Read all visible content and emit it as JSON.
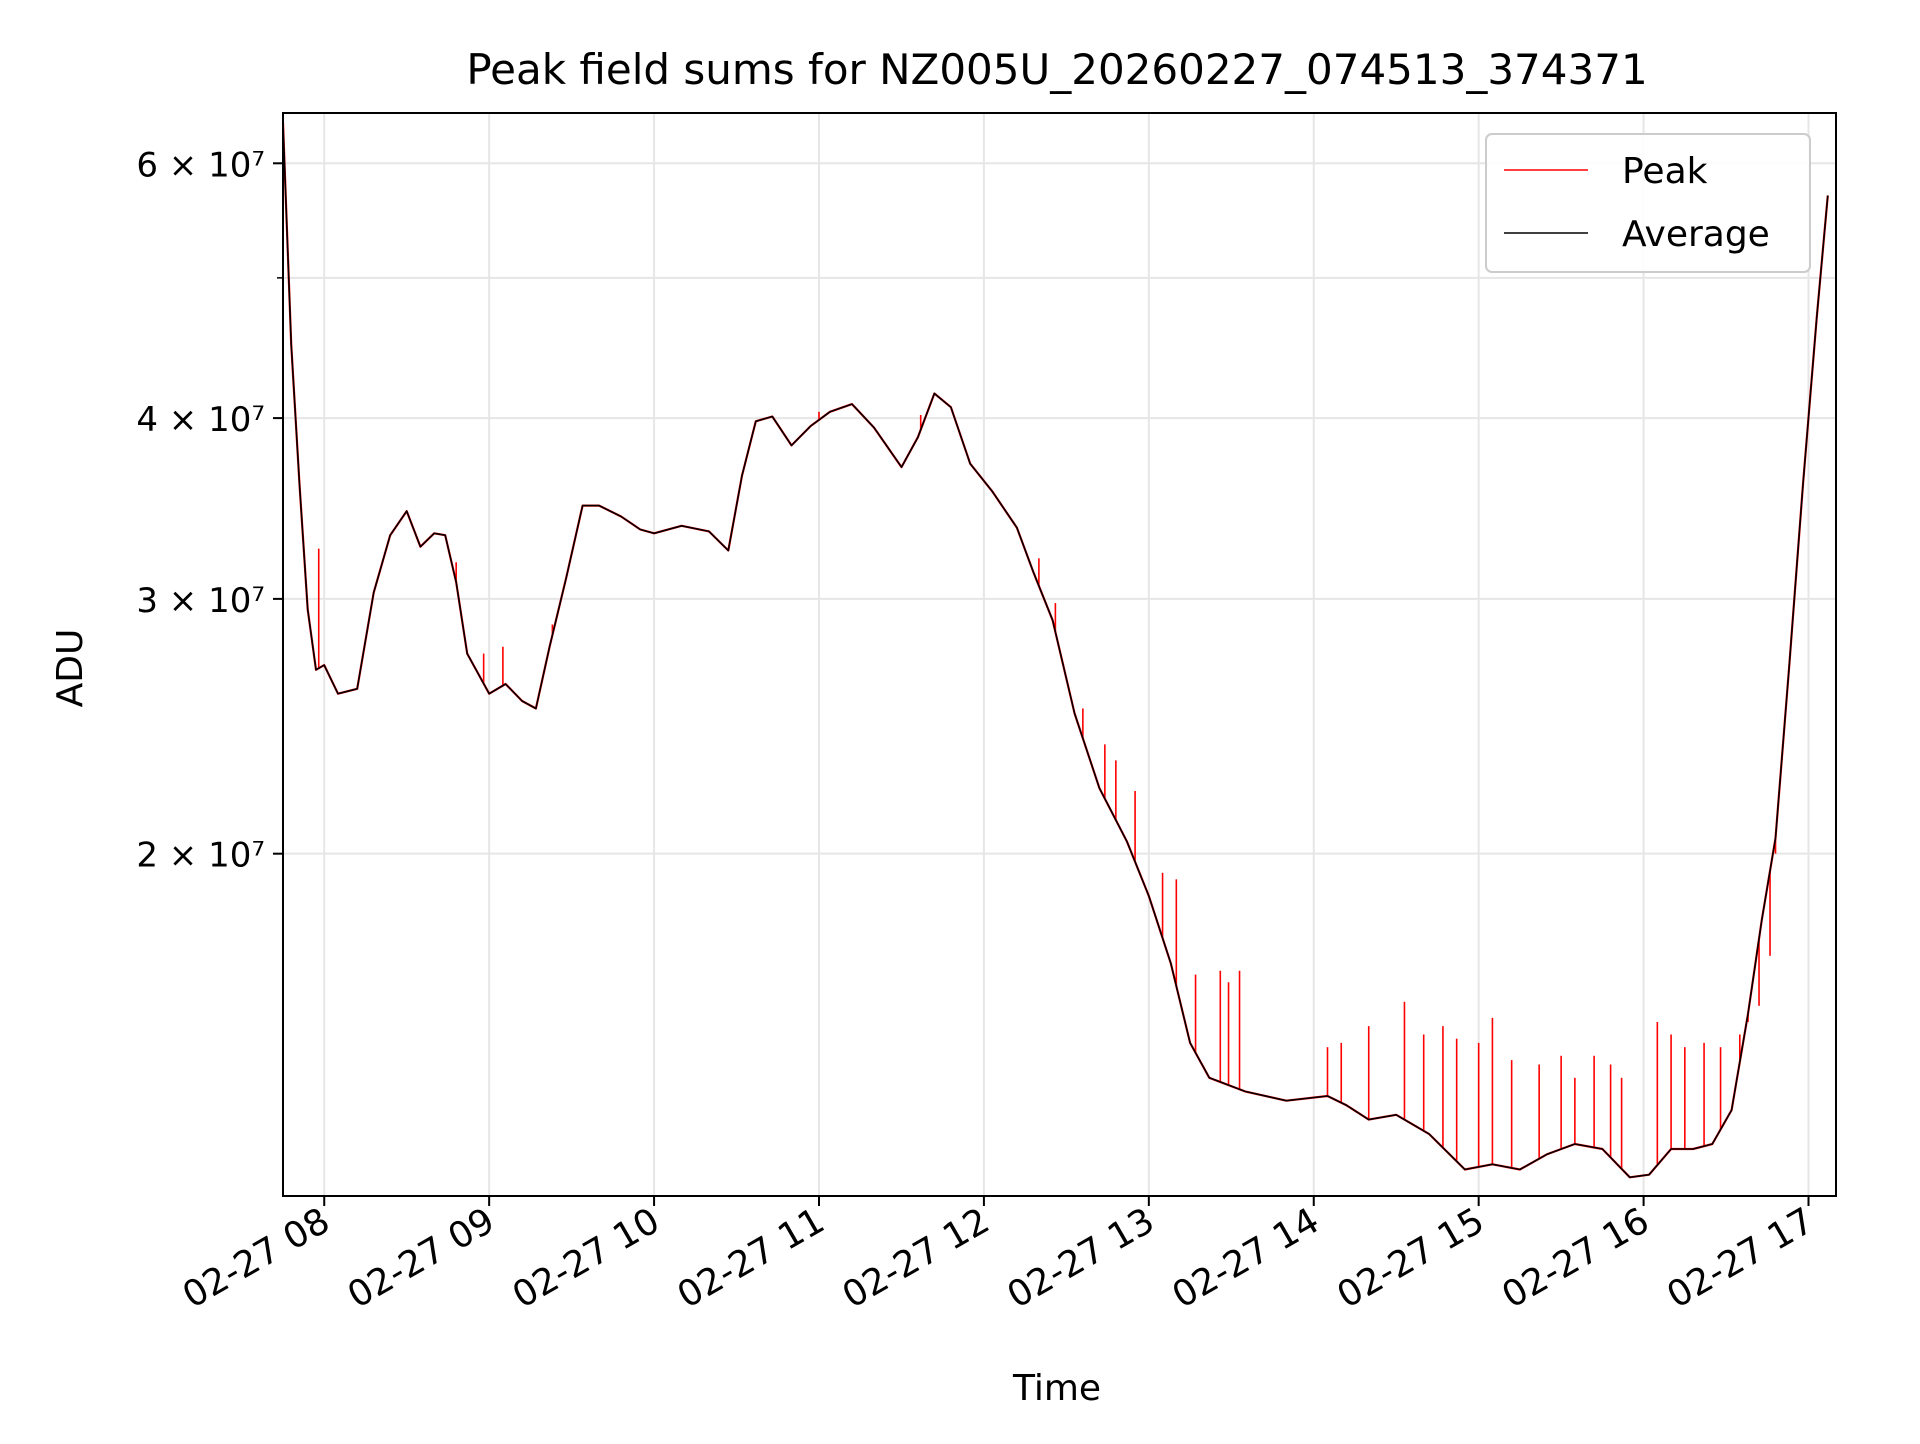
{
  "chart_data": {
    "type": "line",
    "title": "Peak field sums for NZ005U_20260227_074513_374371",
    "xlabel": "Time",
    "ylabel": "ADU",
    "yscale": "log",
    "grid": true,
    "legend_placement": "top-right",
    "x_range": [
      "2026-02-27 07:45",
      "2026-02-27 17:10"
    ],
    "y_range": [
      11600000,
      65000000
    ],
    "x_ticks": [
      {
        "value": "2026-02-27 08:00",
        "label": "02-27 08"
      },
      {
        "value": "2026-02-27 09:00",
        "label": "02-27 09"
      },
      {
        "value": "2026-02-27 10:00",
        "label": "02-27 10"
      },
      {
        "value": "2026-02-27 11:00",
        "label": "02-27 11"
      },
      {
        "value": "2026-02-27 12:00",
        "label": "02-27 12"
      },
      {
        "value": "2026-02-27 13:00",
        "label": "02-27 13"
      },
      {
        "value": "2026-02-27 14:00",
        "label": "02-27 14"
      },
      {
        "value": "2026-02-27 15:00",
        "label": "02-27 15"
      },
      {
        "value": "2026-02-27 16:00",
        "label": "02-27 16"
      },
      {
        "value": "2026-02-27 17:00",
        "label": "02-27 17"
      }
    ],
    "y_ticks": [
      {
        "value": 20000000,
        "label": "2 × 10⁷"
      },
      {
        "value": 30000000,
        "label": "3 × 10⁷"
      },
      {
        "value": 40000000,
        "label": "4 × 10⁷"
      },
      {
        "value": 60000000,
        "label": "6 × 10⁷"
      }
    ],
    "y_minor_ticks": [
      50000000
    ],
    "series": [
      {
        "name": "Average",
        "color": "#000000",
        "points": [
          [
            "2026-02-27 07:45",
            64000000
          ],
          [
            "2026-02-27 07:48",
            45000000
          ],
          [
            "2026-02-27 07:51",
            36000000
          ],
          [
            "2026-02-27 07:54",
            29500000
          ],
          [
            "2026-02-27 07:57",
            26800000
          ],
          [
            "2026-02-27 08:00",
            27000000
          ],
          [
            "2026-02-27 08:05",
            25800000
          ],
          [
            "2026-02-27 08:12",
            26000000
          ],
          [
            "2026-02-27 08:18",
            30300000
          ],
          [
            "2026-02-27 08:24",
            33200000
          ],
          [
            "2026-02-27 08:30",
            34500000
          ],
          [
            "2026-02-27 08:35",
            32600000
          ],
          [
            "2026-02-27 08:40",
            33300000
          ],
          [
            "2026-02-27 08:44",
            33200000
          ],
          [
            "2026-02-27 08:48",
            30800000
          ],
          [
            "2026-02-27 08:52",
            27500000
          ],
          [
            "2026-02-27 09:00",
            25800000
          ],
          [
            "2026-02-27 09:06",
            26200000
          ],
          [
            "2026-02-27 09:12",
            25500000
          ],
          [
            "2026-02-27 09:17",
            25200000
          ],
          [
            "2026-02-27 09:22",
            27800000
          ],
          [
            "2026-02-27 09:28",
            31000000
          ],
          [
            "2026-02-27 09:34",
            34800000
          ],
          [
            "2026-02-27 09:40",
            34800000
          ],
          [
            "2026-02-27 09:48",
            34200000
          ],
          [
            "2026-02-27 09:55",
            33500000
          ],
          [
            "2026-02-27 10:00",
            33300000
          ],
          [
            "2026-02-27 10:10",
            33700000
          ],
          [
            "2026-02-27 10:20",
            33400000
          ],
          [
            "2026-02-27 10:27",
            32400000
          ],
          [
            "2026-02-27 10:32",
            36500000
          ],
          [
            "2026-02-27 10:37",
            39800000
          ],
          [
            "2026-02-27 10:43",
            40100000
          ],
          [
            "2026-02-27 10:50",
            38300000
          ],
          [
            "2026-02-27 10:57",
            39500000
          ],
          [
            "2026-02-27 11:04",
            40400000
          ],
          [
            "2026-02-27 11:12",
            40900000
          ],
          [
            "2026-02-27 11:20",
            39400000
          ],
          [
            "2026-02-27 11:30",
            37000000
          ],
          [
            "2026-02-27 11:36",
            38800000
          ],
          [
            "2026-02-27 11:42",
            41600000
          ],
          [
            "2026-02-27 11:48",
            40700000
          ],
          [
            "2026-02-27 11:55",
            37200000
          ],
          [
            "2026-02-27 12:03",
            35600000
          ],
          [
            "2026-02-27 12:12",
            33600000
          ],
          [
            "2026-02-27 12:18",
            31300000
          ],
          [
            "2026-02-27 12:25",
            29000000
          ],
          [
            "2026-02-27 12:33",
            25000000
          ],
          [
            "2026-02-27 12:42",
            22200000
          ],
          [
            "2026-02-27 12:52",
            20400000
          ],
          [
            "2026-02-27 13:00",
            18700000
          ],
          [
            "2026-02-27 13:08",
            16800000
          ],
          [
            "2026-02-27 13:15",
            14800000
          ],
          [
            "2026-02-27 13:22",
            14000000
          ],
          [
            "2026-02-27 13:35",
            13700000
          ],
          [
            "2026-02-27 13:50",
            13500000
          ],
          [
            "2026-02-27 14:05",
            13600000
          ],
          [
            "2026-02-27 14:12",
            13400000
          ],
          [
            "2026-02-27 14:20",
            13100000
          ],
          [
            "2026-02-27 14:30",
            13200000
          ],
          [
            "2026-02-27 14:42",
            12800000
          ],
          [
            "2026-02-27 14:55",
            12100000
          ],
          [
            "2026-02-27 15:05",
            12200000
          ],
          [
            "2026-02-27 15:15",
            12100000
          ],
          [
            "2026-02-27 15:25",
            12400000
          ],
          [
            "2026-02-27 15:35",
            12600000
          ],
          [
            "2026-02-27 15:45",
            12500000
          ],
          [
            "2026-02-27 15:55",
            11950000
          ],
          [
            "2026-02-27 16:02",
            12000000
          ],
          [
            "2026-02-27 16:10",
            12500000
          ],
          [
            "2026-02-27 16:18",
            12500000
          ],
          [
            "2026-02-27 16:25",
            12600000
          ],
          [
            "2026-02-27 16:32",
            13300000
          ],
          [
            "2026-02-27 16:38",
            15500000
          ],
          [
            "2026-02-27 16:43",
            18000000
          ],
          [
            "2026-02-27 16:48",
            20500000
          ],
          [
            "2026-02-27 16:53",
            27000000
          ],
          [
            "2026-02-27 16:58",
            36000000
          ],
          [
            "2026-02-27 17:03",
            47000000
          ],
          [
            "2026-02-27 17:07",
            57000000
          ]
        ]
      },
      {
        "name": "Peak",
        "color": "#ff0000",
        "spikes": [
          [
            "2026-02-27 07:58",
            32500000
          ],
          [
            "2026-02-27 08:48",
            31800000
          ],
          [
            "2026-02-27 08:58",
            27500000
          ],
          [
            "2026-02-27 09:05",
            27800000
          ],
          [
            "2026-02-27 09:23",
            28800000
          ],
          [
            "2026-02-27 11:00",
            40400000
          ],
          [
            "2026-02-27 11:37",
            40200000
          ],
          [
            "2026-02-27 12:20",
            32000000
          ],
          [
            "2026-02-27 12:26",
            29800000
          ],
          [
            "2026-02-27 12:36",
            25200000
          ],
          [
            "2026-02-27 12:44",
            23800000
          ],
          [
            "2026-02-27 12:48",
            23200000
          ],
          [
            "2026-02-27 12:55",
            22100000
          ],
          [
            "2026-02-27 13:05",
            19400000
          ],
          [
            "2026-02-27 13:10",
            19200000
          ],
          [
            "2026-02-27 13:17",
            16500000
          ],
          [
            "2026-02-27 13:26",
            16600000
          ],
          [
            "2026-02-27 13:29",
            16300000
          ],
          [
            "2026-02-27 13:33",
            16600000
          ],
          [
            "2026-02-27 14:05",
            14700000
          ],
          [
            "2026-02-27 14:10",
            14800000
          ],
          [
            "2026-02-27 14:20",
            15200000
          ],
          [
            "2026-02-27 14:33",
            15800000
          ],
          [
            "2026-02-27 14:40",
            15000000
          ],
          [
            "2026-02-27 14:47",
            15200000
          ],
          [
            "2026-02-27 14:52",
            14900000
          ],
          [
            "2026-02-27 15:00",
            14800000
          ],
          [
            "2026-02-27 15:05",
            15400000
          ],
          [
            "2026-02-27 15:12",
            14400000
          ],
          [
            "2026-02-27 15:22",
            14300000
          ],
          [
            "2026-02-27 15:30",
            14500000
          ],
          [
            "2026-02-27 15:35",
            14000000
          ],
          [
            "2026-02-27 15:42",
            14500000
          ],
          [
            "2026-02-27 15:48",
            14300000
          ],
          [
            "2026-02-27 15:52",
            14000000
          ],
          [
            "2026-02-27 16:05",
            15300000
          ],
          [
            "2026-02-27 16:10",
            15000000
          ],
          [
            "2026-02-27 16:15",
            14700000
          ],
          [
            "2026-02-27 16:22",
            14800000
          ],
          [
            "2026-02-27 16:28",
            14700000
          ],
          [
            "2026-02-27 16:35",
            15000000
          ],
          [
            "2026-02-27 16:38",
            15300000
          ],
          [
            "2026-02-27 16:42",
            15700000
          ],
          [
            "2026-02-27 16:46",
            17000000
          ],
          [
            "2026-02-27 16:48",
            20000000
          ]
        ]
      }
    ]
  },
  "legend": [
    {
      "label": "Peak",
      "color": "#ff0000"
    },
    {
      "label": "Average",
      "color": "#000000"
    }
  ]
}
